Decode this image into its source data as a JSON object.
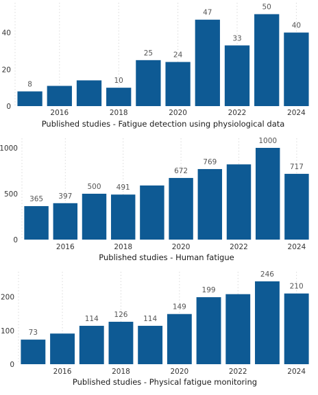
{
  "colors": {
    "bar": "#0e5a94",
    "grid": "#d9d9d9"
  },
  "chart_data": [
    {
      "type": "bar",
      "xlabel": "Published studies - Fatigue detection using physiological data",
      "ylabel": "",
      "x": [
        2015,
        2016,
        2017,
        2018,
        2019,
        2020,
        2021,
        2022,
        2023,
        2024
      ],
      "values": [
        8,
        11,
        14,
        10,
        25,
        24,
        47,
        33,
        50,
        40
      ],
      "data_labels": [
        "8",
        "",
        "",
        "10",
        "25",
        "24",
        "47",
        "33",
        "50",
        "40"
      ],
      "xticks": [
        "2016",
        "2018",
        "2020",
        "2022",
        "2024"
      ],
      "yticks": [
        "0",
        "20",
        "40"
      ],
      "ylim": [
        0,
        51
      ],
      "grid": "vertical dotted"
    },
    {
      "type": "bar",
      "xlabel": "Published studies - Human fatigue",
      "ylabel": "",
      "x": [
        2015,
        2016,
        2017,
        2018,
        2019,
        2020,
        2021,
        2022,
        2023,
        2024
      ],
      "values": [
        365,
        397,
        500,
        491,
        590,
        672,
        769,
        820,
        1000,
        717
      ],
      "data_labels": [
        "365",
        "397",
        "500",
        "491",
        "",
        "672",
        "769",
        "",
        "1000",
        "717"
      ],
      "xticks": [
        "2016",
        "2018",
        "2020",
        "2022",
        "2024"
      ],
      "yticks": [
        "0",
        "500",
        "1000"
      ],
      "ylim": [
        0,
        1000
      ],
      "grid": "vertical dotted"
    },
    {
      "type": "bar",
      "xlabel": "Published studies - Physical fatigue monitoring",
      "ylabel": "",
      "x": [
        2015,
        2016,
        2017,
        2018,
        2019,
        2020,
        2021,
        2022,
        2023,
        2024
      ],
      "values": [
        73,
        91,
        114,
        126,
        114,
        149,
        199,
        208,
        246,
        210
      ],
      "data_labels": [
        "73",
        "",
        "114",
        "126",
        "114",
        "149",
        "199",
        "",
        "246",
        "210"
      ],
      "xticks": [
        "2016",
        "2018",
        "2020",
        "2022",
        "2024"
      ],
      "yticks": [
        "0",
        "100",
        "200"
      ],
      "ylim": [
        0,
        246
      ],
      "grid": "vertical dotted"
    }
  ]
}
